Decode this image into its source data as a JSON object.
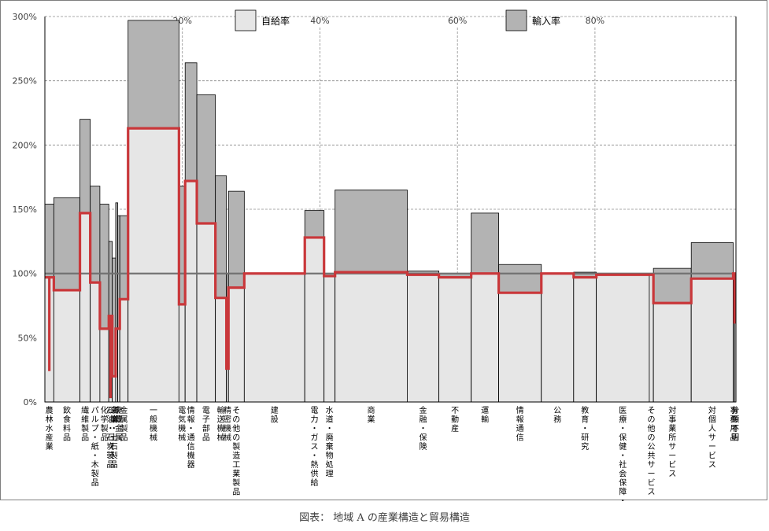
{
  "caption": "図表： 地域 A の産業構造と貿易構造",
  "chart_data": {
    "type": "bar",
    "subtype": "variable-width (marimekko) with step line",
    "title": "",
    "legend": {
      "position": "top",
      "self_sufficiency": {
        "label": "自給率",
        "color": "#e6e6e6"
      },
      "import": {
        "label": "輸入率",
        "color": "#b3b3b3"
      }
    },
    "step_line_color": "#c9373a",
    "ylim": [
      0,
      300
    ],
    "y_ticks": [
      "0%",
      "50%",
      "100%",
      "150%",
      "200%",
      "250%",
      "300%"
    ],
    "reference_line": 100,
    "x_share_ticks": [
      "20%",
      "40%",
      "60%",
      "80%"
    ],
    "x_share_positions": [
      20,
      40,
      60,
      80
    ],
    "industries": [
      {
        "label": "農林水産業",
        "share": 1.3,
        "self": 97,
        "total": 154,
        "spike": 24
      },
      {
        "label": "飲食料品",
        "share": 3.8,
        "self": 87,
        "total": 159
      },
      {
        "label": "繊維製品",
        "share": 1.5,
        "self": 147,
        "total": 220
      },
      {
        "label": "パルプ・紙・木製品",
        "share": 1.4,
        "self": 93,
        "total": 168
      },
      {
        "label": "化学製品",
        "share": 1.3,
        "self": 57,
        "total": 154
      },
      {
        "label": "石油・石炭製品",
        "share": 0.5,
        "self": 67,
        "total": 125,
        "spike": 3
      },
      {
        "label": "窯業・土石製品",
        "share": 0.5,
        "self": 20,
        "total": 112
      },
      {
        "label": "鉄鋼",
        "share": 0.3,
        "self": 57,
        "total": 155
      },
      {
        "label": "非鉄金属",
        "share": 0.3,
        "self": 57,
        "total": 145
      },
      {
        "label": "金属製品",
        "share": 1.2,
        "self": 80,
        "total": 145
      },
      {
        "label": "一般機械",
        "share": 7.4,
        "self": 213,
        "total": 297
      },
      {
        "label": "電気機械",
        "share": 0.9,
        "self": 76,
        "total": 168
      },
      {
        "label": "情報・通信機器",
        "share": 1.7,
        "self": 172,
        "total": 264
      },
      {
        "label": "電子部品",
        "share": 2.7,
        "self": 139,
        "total": 239
      },
      {
        "label": "輸送機械",
        "share": 1.6,
        "self": 81,
        "total": 176
      },
      {
        "label": "精密機械",
        "share": 0.3,
        "self": 26,
        "total": 100
      },
      {
        "label": "その他の製造工業製品",
        "share": 2.3,
        "self": 89,
        "total": 164
      },
      {
        "label": "建設",
        "share": 8.8,
        "self": 100,
        "total": 100
      },
      {
        "label": "電力・ガス・熱供給",
        "share": 2.8,
        "self": 128,
        "total": 149
      },
      {
        "label": "水道・廃棄物処理",
        "share": 1.6,
        "self": 98,
        "total": 100
      },
      {
        "label": "商業",
        "share": 10.5,
        "self": 101,
        "total": 165
      },
      {
        "label": "金融・保険",
        "share": 4.6,
        "self": 99,
        "total": 102
      },
      {
        "label": "不動産",
        "share": 4.7,
        "self": 97,
        "total": 100
      },
      {
        "label": "運輸",
        "share": 4.0,
        "self": 100,
        "total": 147
      },
      {
        "label": "情報通信",
        "share": 6.2,
        "self": 85,
        "total": 107
      },
      {
        "label": "公務",
        "share": 4.7,
        "self": 100,
        "total": 100
      },
      {
        "label": "教育・研究",
        "share": 3.3,
        "self": 97,
        "total": 101
      },
      {
        "label": "医療・保健・社会保障・介護",
        "share": 7.7,
        "self": 99,
        "total": 99
      },
      {
        "label": "その他の公共サービス",
        "share": 0.6,
        "self": 99,
        "total": 100
      },
      {
        "label": "対事業所サービス",
        "share": 5.5,
        "self": 77,
        "total": 104
      },
      {
        "label": "対個人サービス",
        "share": 6.1,
        "self": 96,
        "total": 124
      },
      {
        "label": "事務用品",
        "share": 0.2,
        "self": 100,
        "total": 100
      },
      {
        "label": "分類不明",
        "share": 0.2,
        "self": 62,
        "total": 100
      }
    ]
  }
}
